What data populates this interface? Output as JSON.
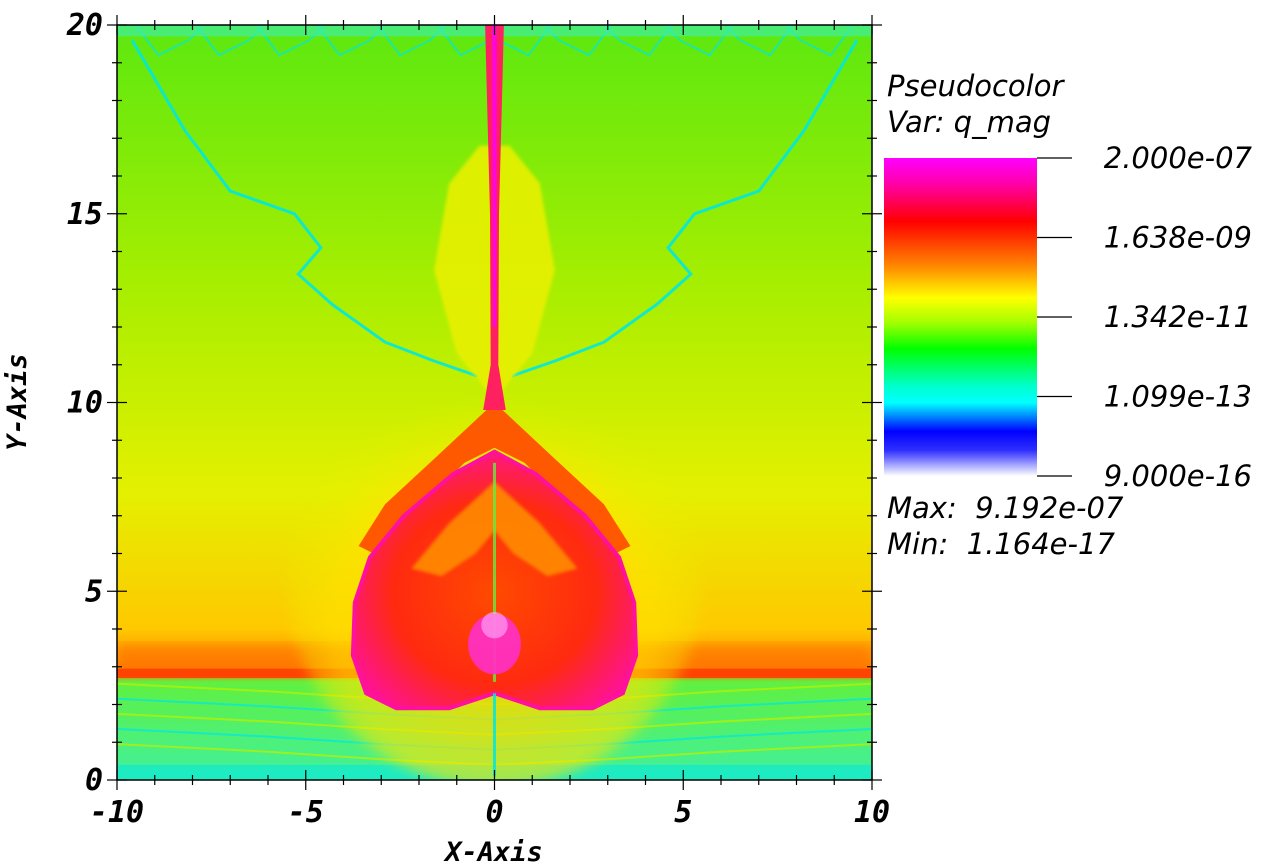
{
  "chart_data": {
    "type": "heatmap",
    "xlabel": "X-Axis",
    "ylabel": "Y-Axis",
    "xlim": [
      -10,
      10
    ],
    "ylim": [
      0,
      20
    ],
    "x_ticks": [
      "-10",
      "-5",
      "0",
      "5",
      "10"
    ],
    "y_ticks": [
      "0",
      "5",
      "10",
      "15",
      "20"
    ],
    "x_tick_values": [
      -10,
      -5,
      0,
      5,
      10
    ],
    "y_tick_values": [
      0,
      5,
      10,
      15,
      20
    ],
    "x_minor_step": 1,
    "y_minor_step": 1,
    "grid": false,
    "legend": {
      "placement": "right",
      "title": "Pseudocolor",
      "variable": "Var: q_mag",
      "scale": "log",
      "labels": [
        "2.000e-07",
        "1.638e-09",
        "1.342e-11",
        "1.099e-13",
        "9.000e-16"
      ],
      "values": [
        2e-07,
        1.638e-09,
        1.342e-11,
        1.099e-13,
        9e-16
      ],
      "colorscale": [
        "#ff00ff",
        "#ff0000",
        "#ffff00",
        "#00ff00",
        "#00ffff",
        "#0000ff",
        "#ffffff"
      ],
      "max_text": "Max:  9.192e-07",
      "min_text": "Min:  1.164e-17"
    },
    "field_colors": {
      "background": "#8cf000",
      "jet": "#ff2060",
      "lobe": "#ff2a10",
      "lobe_edge": "#ff10a0",
      "front": "#ffd000",
      "shell": "#e8f000",
      "filament": "#00e8e0",
      "ground": "#38f030",
      "core": "#ff30c0"
    }
  }
}
